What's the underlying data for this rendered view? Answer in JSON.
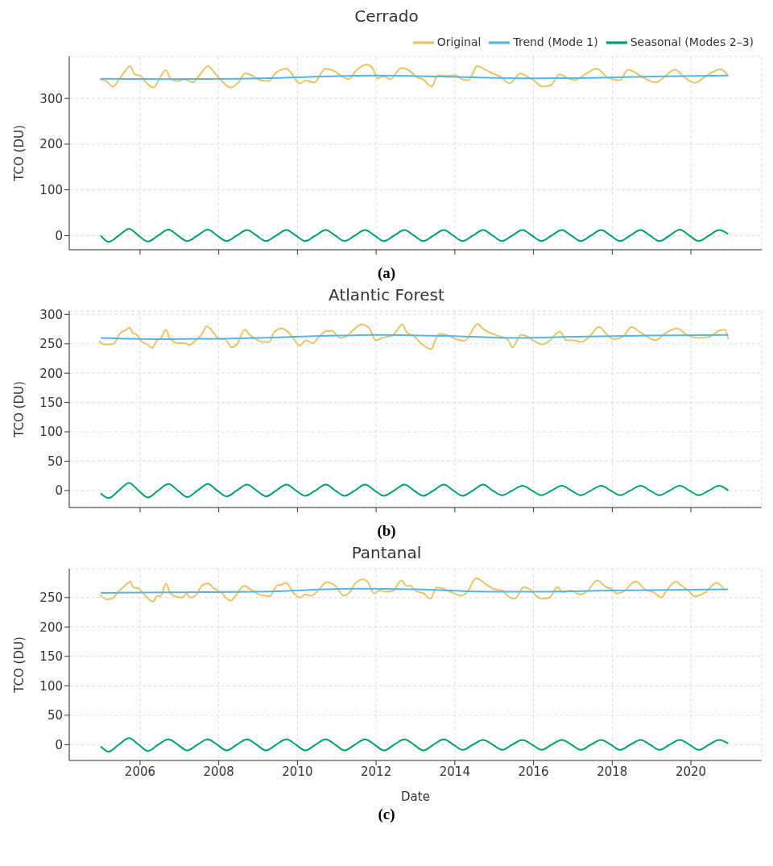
{
  "chart_data": [
    {
      "type": "line",
      "title": "Cerrado",
      "ylabel": "TCO (DU)",
      "annotations": [
        "(a)"
      ],
      "xlim": [
        2004.2,
        2021.8
      ],
      "xticks": [
        2006,
        2008,
        2010,
        2012,
        2014,
        2016,
        2018,
        2020
      ],
      "ylim": [
        -31,
        392
      ],
      "yticks": [
        0,
        100,
        200,
        300
      ],
      "grid": true,
      "legend": "top right",
      "tick_labels": "y",
      "series": [
        {
          "name": "Original",
          "color": "#e8c36a",
          "x": [
            2004.97,
            2005.14,
            2005.31,
            2005.53,
            2005.75,
            2005.86,
            2006.02,
            2006.1,
            2006.35,
            2006.46,
            2006.65,
            2006.79,
            2006.96,
            2007.12,
            2007.35,
            2007.51,
            2007.73,
            2007.9,
            2008.06,
            2008.3,
            2008.5,
            2008.67,
            2008.83,
            2009.05,
            2009.27,
            2009.44,
            2009.72,
            2009.88,
            2010.05,
            2010.21,
            2010.43,
            2010.71,
            2010.93,
            2011.09,
            2011.31,
            2011.48,
            2011.76,
            2011.92,
            2012.03,
            2012.2,
            2012.36,
            2012.64,
            2012.86,
            2013.02,
            2013.19,
            2013.41,
            2013.57,
            2013.8,
            2014.02,
            2014.18,
            2014.35,
            2014.57,
            2014.73,
            2014.95,
            2015.17,
            2015.39,
            2015.67,
            2015.83,
            2016.0,
            2016.22,
            2016.44,
            2016.66,
            2016.88,
            2017.05,
            2017.3,
            2017.6,
            2017.9,
            2018.2,
            2018.4,
            2018.8,
            2019.1,
            2019.6,
            2019.85,
            2020.1,
            2020.4,
            2020.75,
            2020.95
          ],
          "values": [
            342,
            338,
            326,
            349,
            371,
            353,
            349,
            340,
            324,
            338,
            362,
            342,
            338,
            342,
            335,
            351,
            371,
            355,
            340,
            324,
            335,
            355,
            351,
            340,
            338,
            355,
            365,
            351,
            333,
            339,
            335,
            365,
            360,
            351,
            342,
            360,
            374,
            365,
            344,
            348,
            342,
            367,
            360,
            347,
            342,
            326,
            351,
            349,
            351,
            342,
            340,
            371,
            365,
            355,
            347,
            333,
            355,
            348,
            340,
            326,
            329,
            353,
            344,
            340,
            352,
            365,
            345,
            340,
            363,
            345,
            335,
            363,
            345,
            334,
            350,
            364,
            350
          ]
        },
        {
          "name": "Trend (Mode 1)",
          "color": "#56b4e9",
          "x": [
            2005,
            2006.5,
            2008.5,
            2010,
            2011,
            2012,
            2013,
            2014.5,
            2016,
            2017.5,
            2019,
            2020.95
          ],
          "values": [
            343,
            342,
            343,
            346,
            349,
            350,
            349,
            346,
            344,
            345,
            348,
            350
          ]
        },
        {
          "name": "Seasonal (Modes 2–3)",
          "color": "#009e73",
          "x": [
            2005,
            2005.2,
            2005.46,
            2005.72,
            2005.96,
            2006.2,
            2006.46,
            2006.72,
            2006.96,
            2007.2,
            2007.46,
            2007.72,
            2007.96,
            2008.2,
            2008.46,
            2008.72,
            2008.96,
            2009.2,
            2009.46,
            2009.72,
            2009.96,
            2010.2,
            2010.46,
            2010.72,
            2010.96,
            2011.2,
            2011.46,
            2011.72,
            2011.96,
            2012.2,
            2012.46,
            2012.72,
            2012.96,
            2013.2,
            2013.46,
            2013.72,
            2013.96,
            2014.2,
            2014.46,
            2014.72,
            2014.96,
            2015.2,
            2015.46,
            2015.72,
            2015.96,
            2016.2,
            2016.46,
            2016.72,
            2016.96,
            2017.2,
            2017.46,
            2017.72,
            2017.96,
            2018.2,
            2018.46,
            2018.72,
            2018.96,
            2019.2,
            2019.46,
            2019.72,
            2019.96,
            2020.2,
            2020.46,
            2020.72,
            2020.95
          ],
          "values": [
            0,
            -14,
            0,
            15,
            0,
            -13,
            0,
            13,
            0,
            -12,
            0,
            13,
            0,
            -12,
            0,
            12,
            0,
            -12,
            0,
            12,
            0,
            -12,
            0,
            12,
            0,
            -12,
            0,
            12,
            0,
            -12,
            0,
            12,
            0,
            -12,
            0,
            12,
            0,
            -12,
            0,
            12,
            0,
            -12,
            0,
            12,
            0,
            -12,
            0,
            12,
            0,
            -12,
            0,
            12,
            0,
            -12,
            0,
            12,
            0,
            -12,
            0,
            13,
            0,
            -12,
            0,
            12,
            3
          ]
        }
      ]
    },
    {
      "type": "line",
      "title": "Atlantic Forest",
      "ylabel": "TCO (DU)",
      "annotations": [
        "(b)"
      ],
      "xlim": [
        2004.2,
        2021.8
      ],
      "xticks": [
        2006,
        2008,
        2010,
        2012,
        2014,
        2016,
        2018,
        2020
      ],
      "ylim": [
        -29,
        306
      ],
      "yticks": [
        0,
        50,
        100,
        150,
        200,
        250,
        300
      ],
      "grid": true,
      "tick_labels": "y",
      "series": [
        {
          "color": "#e8c36a",
          "x": [
            2004.95,
            2005.1,
            2005.26,
            2005.37,
            2005.48,
            2005.65,
            2005.74,
            2005.81,
            2005.92,
            2006.03,
            2006.2,
            2006.31,
            2006.42,
            2006.53,
            2006.66,
            2006.75,
            2006.97,
            2007.14,
            2007.25,
            2007.41,
            2007.58,
            2007.69,
            2007.78,
            2007.89,
            2008.02,
            2008.15,
            2008.33,
            2008.46,
            2008.66,
            2008.79,
            2008.95,
            2009.12,
            2009.29,
            2009.4,
            2009.59,
            2009.78,
            2009.91,
            2010.06,
            2010.22,
            2010.39,
            2010.55,
            2010.75,
            2010.88,
            2011.08,
            2011.22,
            2011.46,
            2011.63,
            2011.82,
            2011.99,
            2012.15,
            2012.43,
            2012.67,
            2012.76,
            2012.98,
            2013.14,
            2013.4,
            2013.59,
            2013.81,
            2014.03,
            2014.25,
            2014.58,
            2014.69,
            2014.85,
            2015.13,
            2015.35,
            2015.46,
            2015.68,
            2015.85,
            2016.01,
            2016.23,
            2016.4,
            2016.67,
            2016.84,
            2017.0,
            2017.22,
            2017.44,
            2017.66,
            2017.89,
            2018.05,
            2018.27,
            2018.49,
            2018.66,
            2018.82,
            2019.1,
            2019.37,
            2019.65,
            2019.93,
            2020.2,
            2020.48,
            2020.7,
            2020.86,
            2020.95
          ],
          "values": [
            255,
            249,
            249,
            253,
            267,
            274,
            278,
            269,
            265,
            255,
            248,
            243,
            255,
            260,
            274,
            260,
            251,
            251,
            248,
            256,
            267,
            280,
            276,
            267,
            258,
            258,
            244,
            249,
            274,
            265,
            258,
            253,
            253,
            269,
            276,
            269,
            258,
            247,
            256,
            251,
            262,
            272,
            272,
            260,
            262,
            276,
            283,
            277,
            256,
            260,
            265,
            283,
            271,
            262,
            251,
            241,
            267,
            265,
            258,
            255,
            284,
            277,
            270,
            263,
            257,
            244,
            265,
            262,
            255,
            249,
            255,
            271,
            256,
            256,
            253,
            264,
            279,
            264,
            258,
            262,
            279,
            272,
            265,
            256,
            269,
            276,
            264,
            260,
            262,
            272,
            274,
            258
          ]
        },
        {
          "color": "#56b4e9",
          "x": [
            2005,
            2006.5,
            2009,
            2011,
            2012,
            2014,
            2015.5,
            2017,
            2019,
            2020.95
          ],
          "values": [
            260,
            258,
            260,
            264,
            265,
            263,
            260,
            262,
            264,
            265
          ]
        },
        {
          "color": "#009e73",
          "x": [
            2005,
            2005.2,
            2005.46,
            2005.72,
            2005.96,
            2006.2,
            2006.46,
            2006.72,
            2006.96,
            2007.2,
            2007.46,
            2007.72,
            2007.96,
            2008.2,
            2008.46,
            2008.72,
            2008.96,
            2009.2,
            2009.46,
            2009.72,
            2009.96,
            2010.2,
            2010.46,
            2010.72,
            2010.96,
            2011.2,
            2011.46,
            2011.72,
            2011.96,
            2012.2,
            2012.46,
            2012.72,
            2012.96,
            2013.2,
            2013.46,
            2013.72,
            2013.96,
            2014.2,
            2014.46,
            2014.72,
            2014.96,
            2015.2,
            2015.46,
            2015.72,
            2015.96,
            2016.2,
            2016.46,
            2016.72,
            2016.96,
            2017.2,
            2017.46,
            2017.72,
            2017.96,
            2018.2,
            2018.46,
            2018.72,
            2018.96,
            2019.2,
            2019.46,
            2019.72,
            2019.96,
            2020.2,
            2020.46,
            2020.72,
            2020.95
          ],
          "values": [
            -5,
            -13,
            0,
            13,
            0,
            -12,
            0,
            11,
            0,
            -11,
            0,
            11,
            0,
            -10,
            0,
            10,
            0,
            -10,
            0,
            10,
            0,
            -9,
            0,
            10,
            0,
            -9,
            0,
            10,
            0,
            -9,
            0,
            10,
            0,
            -9,
            0,
            10,
            0,
            -9,
            0,
            10,
            0,
            -8,
            0,
            8,
            0,
            -8,
            0,
            8,
            0,
            -8,
            0,
            8,
            0,
            -8,
            0,
            8,
            0,
            -8,
            0,
            8,
            0,
            -8,
            0,
            8,
            0
          ]
        }
      ]
    },
    {
      "type": "line",
      "title": "Pantanal",
      "xlabel": "Date",
      "ylabel": "TCO (DU)",
      "annotations": [
        "(c)"
      ],
      "xlim": [
        2004.2,
        2021.8
      ],
      "xticks": [
        2006,
        2008,
        2010,
        2012,
        2014,
        2016,
        2018,
        2020
      ],
      "ylim": [
        -27,
        299
      ],
      "yticks": [
        0,
        50,
        100,
        150,
        200,
        250
      ],
      "grid": true,
      "series": [
        {
          "color": "#e8c36a",
          "x": [
            2004.98,
            2005.15,
            2005.28,
            2005.45,
            2005.61,
            2005.75,
            2005.83,
            2005.94,
            2006.11,
            2006.22,
            2006.33,
            2006.44,
            2006.52,
            2006.66,
            2006.77,
            2006.94,
            2007.07,
            2007.18,
            2007.27,
            2007.43,
            2007.57,
            2007.73,
            2007.87,
            2008.09,
            2008.2,
            2008.31,
            2008.42,
            2008.64,
            2008.81,
            2009.03,
            2009.19,
            2009.3,
            2009.47,
            2009.6,
            2009.71,
            2009.91,
            2010.07,
            2010.19,
            2010.35,
            2010.55,
            2010.74,
            2010.96,
            2011.18,
            2011.34,
            2011.47,
            2011.67,
            2011.78,
            2011.95,
            2012.09,
            2012.28,
            2012.44,
            2012.64,
            2012.77,
            2012.88,
            2012.99,
            2013.21,
            2013.38,
            2013.54,
            2013.82,
            2013.98,
            2014.15,
            2014.31,
            2014.54,
            2014.76,
            2014.98,
            2015.2,
            2015.36,
            2015.53,
            2015.75,
            2015.91,
            2016.08,
            2016.24,
            2016.41,
            2016.61,
            2016.74,
            2016.96,
            2017.18,
            2017.34,
            2017.62,
            2017.84,
            2018.0,
            2018.11,
            2018.33,
            2018.5,
            2018.61,
            2018.83,
            2019.05,
            2019.25,
            2019.38,
            2019.62,
            2019.77,
            2019.93,
            2020.1,
            2020.37,
            2020.65,
            2020.87
          ],
          "values": [
            255,
            247,
            248,
            260,
            270,
            277,
            267,
            266,
            255,
            247,
            243,
            253,
            252,
            274,
            257,
            251,
            250,
            257,
            250,
            255,
            270,
            274,
            266,
            257,
            248,
            245,
            252,
            270,
            264,
            255,
            253,
            252,
            270,
            272,
            275,
            257,
            250,
            255,
            253,
            264,
            276,
            270,
            253,
            260,
            274,
            281,
            277,
            257,
            262,
            260,
            262,
            279,
            270,
            270,
            262,
            257,
            248,
            267,
            262,
            257,
            253,
            259,
            283,
            274,
            265,
            262,
            252,
            248,
            268,
            264,
            252,
            248,
            250,
            268,
            259,
            262,
            255,
            259,
            279,
            268,
            264,
            257,
            262,
            274,
            277,
            264,
            259,
            250,
            262,
            277,
            270,
            262,
            252,
            259,
            275,
            262
          ]
        },
        {
          "color": "#56b4e9",
          "x": [
            2005,
            2007,
            2009,
            2011.5,
            2013,
            2015,
            2016,
            2018,
            2020.95
          ],
          "values": [
            258,
            259,
            260,
            265,
            264,
            260,
            260,
            262,
            264
          ]
        },
        {
          "color": "#009e73",
          "x": [
            2005,
            2005.2,
            2005.46,
            2005.72,
            2005.96,
            2006.2,
            2006.46,
            2006.72,
            2006.96,
            2007.2,
            2007.46,
            2007.72,
            2007.96,
            2008.2,
            2008.46,
            2008.72,
            2008.96,
            2009.2,
            2009.46,
            2009.72,
            2009.96,
            2010.2,
            2010.46,
            2010.72,
            2010.96,
            2011.2,
            2011.46,
            2011.72,
            2011.96,
            2012.2,
            2012.46,
            2012.72,
            2012.96,
            2013.2,
            2013.46,
            2013.72,
            2013.96,
            2014.2,
            2014.46,
            2014.72,
            2014.96,
            2015.2,
            2015.46,
            2015.72,
            2015.96,
            2016.2,
            2016.46,
            2016.72,
            2016.96,
            2017.2,
            2017.46,
            2017.72,
            2017.96,
            2018.2,
            2018.46,
            2018.72,
            2018.96,
            2019.2,
            2019.46,
            2019.72,
            2019.96,
            2020.2,
            2020.46,
            2020.72,
            2020.95
          ],
          "values": [
            -3,
            -12,
            0,
            11,
            0,
            -11,
            0,
            9,
            0,
            -10,
            0,
            9,
            0,
            -10,
            0,
            9,
            0,
            -10,
            0,
            9,
            0,
            -10,
            0,
            9,
            0,
            -10,
            0,
            9,
            0,
            -10,
            0,
            9,
            0,
            -10,
            0,
            9,
            0,
            -9,
            0,
            8,
            0,
            -9,
            0,
            8,
            0,
            -9,
            0,
            8,
            0,
            -9,
            0,
            8,
            0,
            -9,
            0,
            8,
            0,
            -9,
            0,
            8,
            0,
            -9,
            0,
            8,
            2
          ]
        }
      ]
    }
  ]
}
